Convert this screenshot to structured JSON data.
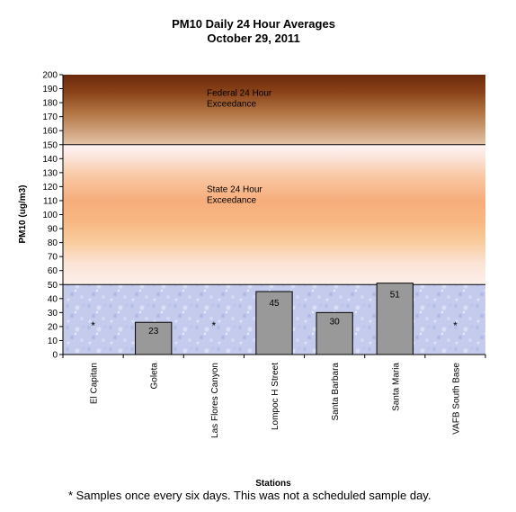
{
  "chart_data": {
    "type": "bar",
    "title": "PM10 Daily 24 Hour Averages",
    "subtitle": "October 29, 2011",
    "ylabel": "PM10 (ug/m3)",
    "xlabel": "Stations",
    "ylim": [
      0,
      200
    ],
    "ytick_step": 10,
    "categories": [
      "El Capitan",
      "Goleta",
      "Las Flores Canyon",
      "Lompoc H Street",
      "Santa Barbara",
      "Santa Maria",
      "VAFB South Base"
    ],
    "values": [
      null,
      23,
      null,
      45,
      30,
      51,
      null
    ],
    "missing_marker": "*",
    "bar_color": "#999999",
    "bands": [
      {
        "label": "Federal 24 Hour\nExceedance",
        "from": 150,
        "to": 200
      },
      {
        "label": "State 24 Hour\nExceedance",
        "from": 50,
        "to": 150
      },
      {
        "label": "",
        "from": 0,
        "to": 50
      }
    ],
    "threshold_lines": [
      50,
      150
    ],
    "legend": "none",
    "grid": false
  },
  "footnote": "* Samples once every six days.  This was not a scheduled sample day."
}
